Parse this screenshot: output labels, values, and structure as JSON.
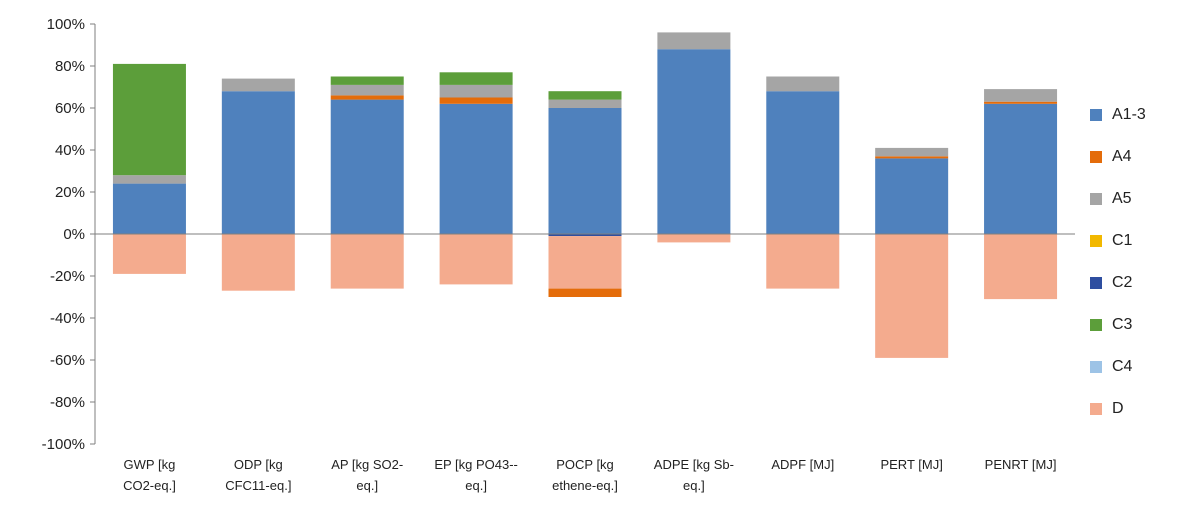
{
  "chart_data": {
    "type": "bar",
    "stacked": true,
    "categories": [
      [
        "GWP [kg",
        "CO2-eq.]"
      ],
      [
        "ODP [kg",
        "CFC11-eq.]"
      ],
      [
        "AP [kg SO2-",
        "eq.]"
      ],
      [
        "EP [kg PO43--",
        "eq.]"
      ],
      [
        "POCP [kg",
        "ethene-eq.]"
      ],
      [
        "ADPE [kg Sb-",
        "eq.]"
      ],
      [
        "ADPF [MJ]"
      ],
      [
        "PERT [MJ]"
      ],
      [
        "PENRT [MJ]"
      ]
    ],
    "y_ticks": [
      "100%",
      "80%",
      "60%",
      "40%",
      "20%",
      "0%",
      "-20%",
      "-40%",
      "-60%",
      "-80%",
      "-100%"
    ],
    "ylim": [
      -100,
      100
    ],
    "grid": false,
    "legend_position": "right",
    "series": [
      {
        "name": "A1-3",
        "color": "#4F81BD",
        "values": [
          24,
          68,
          64,
          62,
          60,
          88,
          68,
          36,
          62
        ]
      },
      {
        "name": "A4",
        "color": "#E46C0A",
        "values": [
          0,
          0,
          2,
          3,
          0,
          0,
          0,
          1,
          1
        ]
      },
      {
        "name": "A5",
        "color": "#A5A5A5",
        "values": [
          4,
          6,
          5,
          6,
          4,
          8,
          7,
          4,
          6
        ]
      },
      {
        "name": "C1",
        "color": "#F2B800",
        "values": [
          0,
          0,
          0,
          0,
          0,
          0,
          0,
          0,
          0
        ]
      },
      {
        "name": "C2",
        "color": "#2E4EA0",
        "values": [
          0,
          0,
          0,
          0,
          -1,
          0,
          0,
          0,
          0
        ]
      },
      {
        "name": "C3",
        "color": "#5C9E3A",
        "values": [
          53,
          0,
          4,
          6,
          4,
          0,
          0,
          0,
          0
        ]
      },
      {
        "name": "C4",
        "color": "#9DC3E6",
        "values": [
          0,
          0,
          0,
          0,
          0,
          0,
          0,
          0,
          0
        ]
      },
      {
        "name": "D",
        "color": "#F4AB8E",
        "values": [
          -19,
          -27,
          -26,
          -24,
          -25,
          -4,
          -26,
          -59,
          -31
        ]
      }
    ],
    "negative_extra": [
      {
        "series": "A4",
        "category_index": 4,
        "value": -4
      }
    ]
  }
}
